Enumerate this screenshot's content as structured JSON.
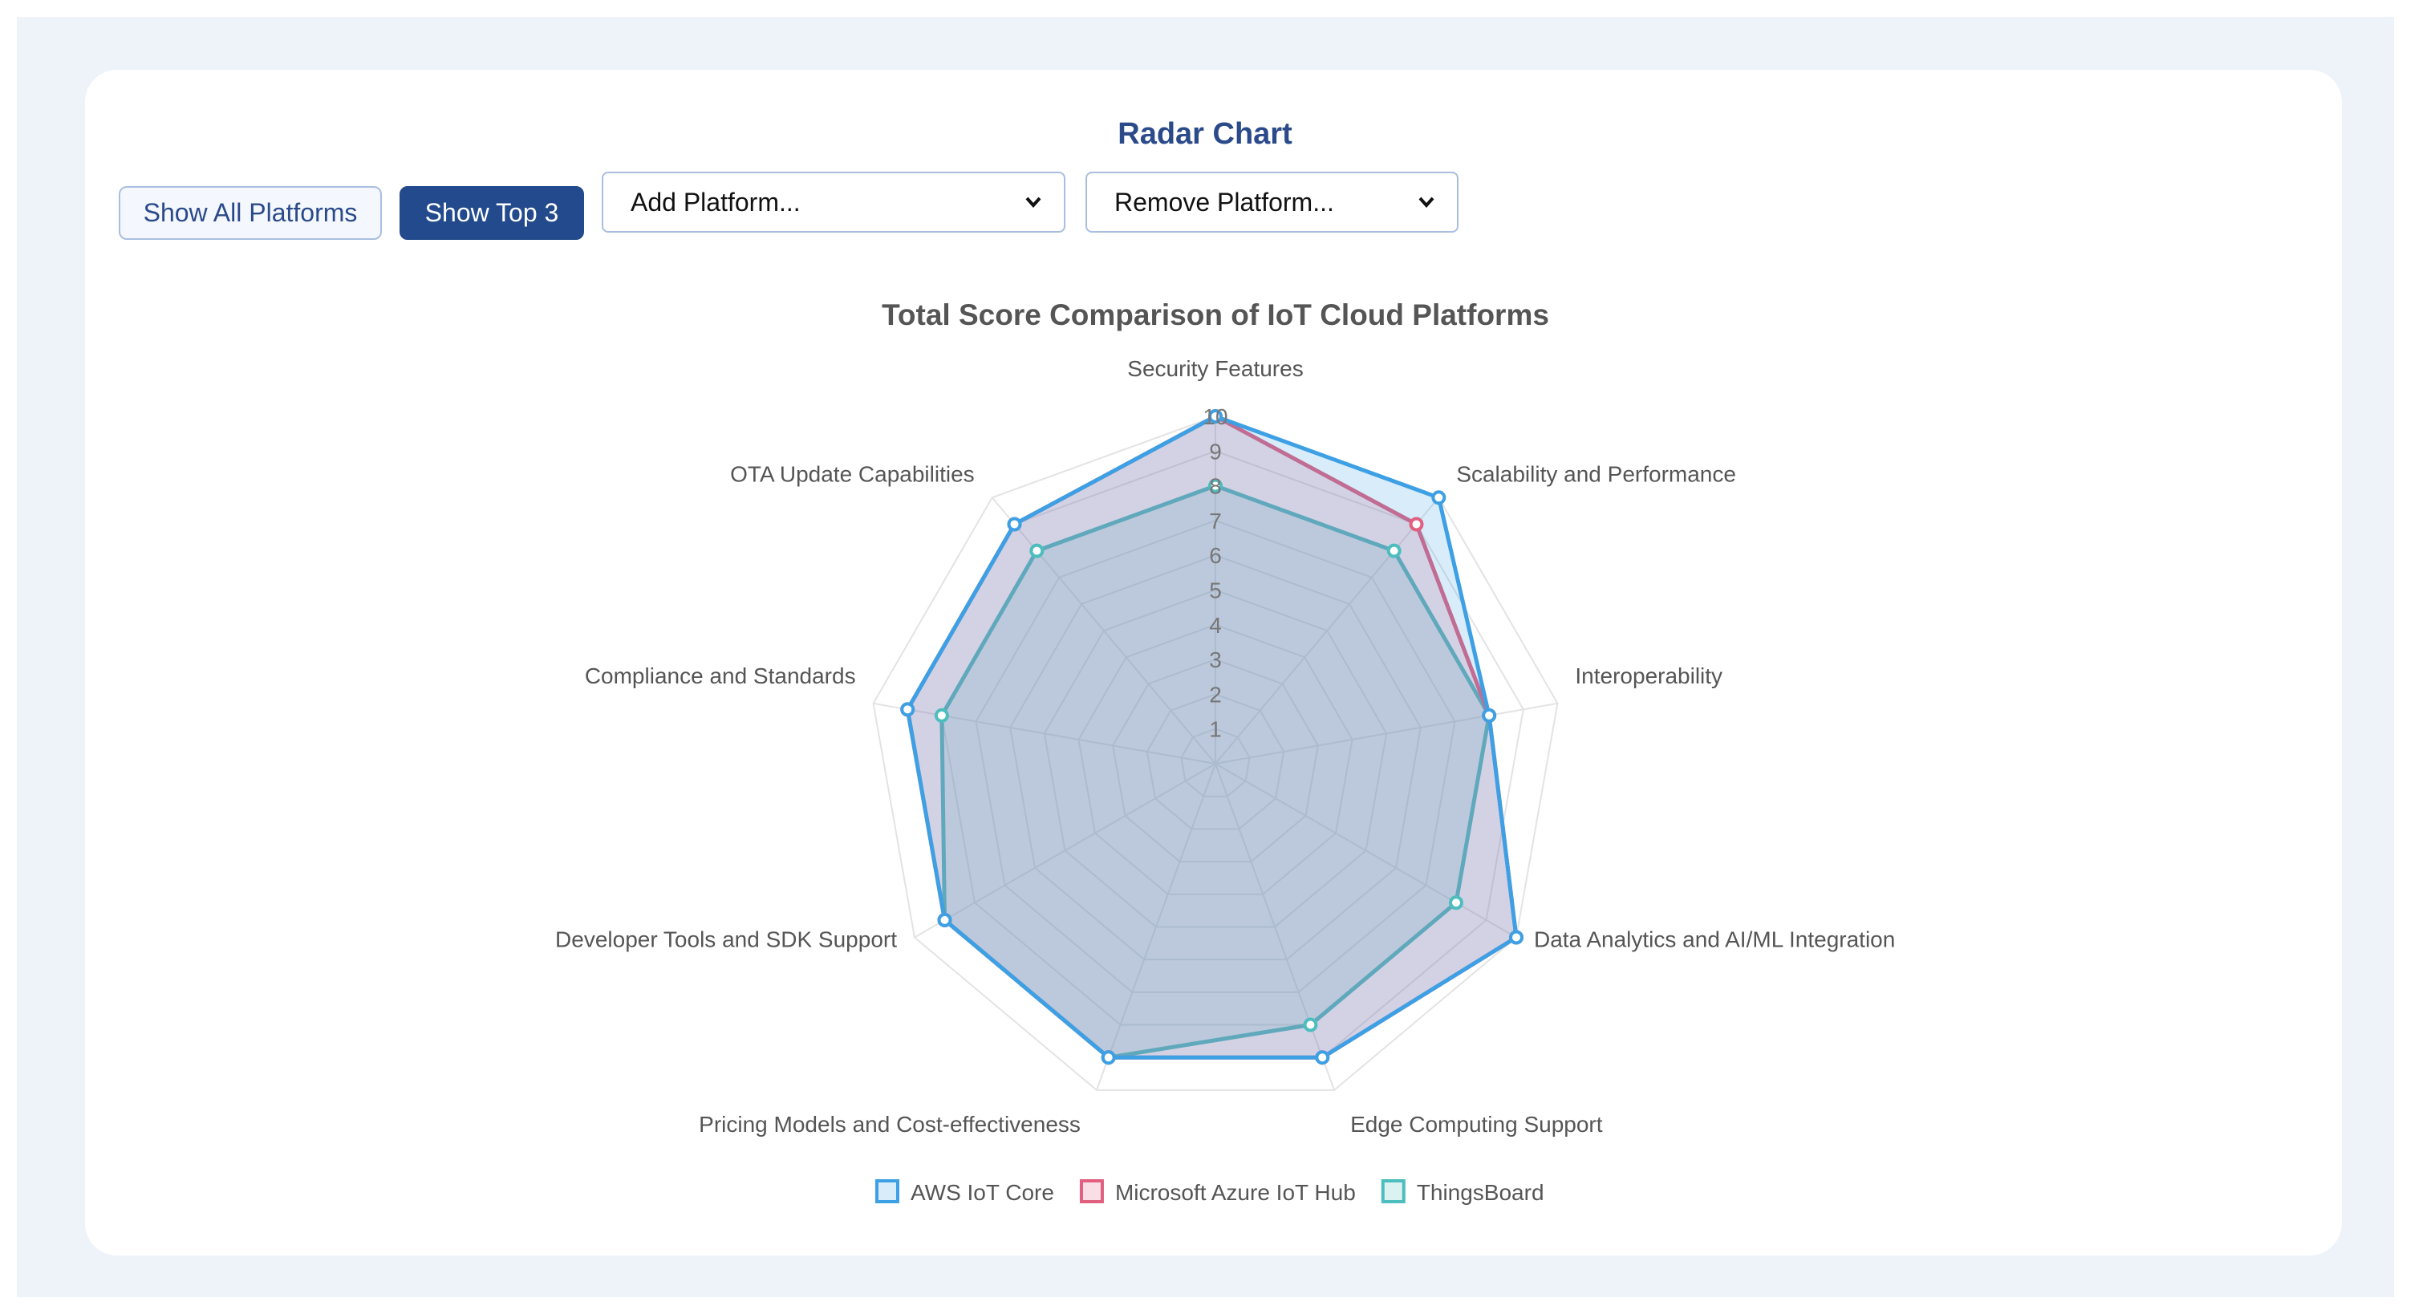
{
  "header": {
    "title": "Radar Chart"
  },
  "controls": {
    "show_all_label": "Show All Platforms",
    "show_top_label": "Show Top 3",
    "add_placeholder": "Add Platform...",
    "remove_placeholder": "Remove Platform..."
  },
  "colors": {
    "accent": "#224a8c",
    "title": "#2b4a8a",
    "aws": "#3ea0e4",
    "azure": "#e1607f",
    "thingsboard": "#4dbdbe"
  },
  "chart_data": {
    "type": "radar",
    "title": "Total Score Comparison of IoT Cloud Platforms",
    "axes": [
      "Security Features",
      "Scalability and Performance",
      "Interoperability",
      "Data Analytics and AI/ML Integration",
      "Edge Computing Support",
      "Pricing Models and Cost-effectiveness",
      "Developer Tools and SDK Support",
      "Compliance and Standards",
      "OTA Update Capabilities"
    ],
    "r_range": [
      0,
      10
    ],
    "r_ticks": [
      "1",
      "2",
      "3",
      "4",
      "5",
      "6",
      "7",
      "8",
      "9",
      "10"
    ],
    "grid": true,
    "legend_position": "bottom",
    "series": [
      {
        "name": "AWS IoT Core",
        "values": [
          10,
          10,
          8,
          10,
          9,
          9,
          9,
          9,
          9
        ]
      },
      {
        "name": "Microsoft Azure IoT Hub",
        "values": [
          10,
          9,
          8,
          10,
          9,
          9,
          9,
          9,
          9
        ]
      },
      {
        "name": "ThingsBoard",
        "values": [
          8,
          8,
          8,
          8,
          8,
          9,
          9,
          8,
          8
        ]
      }
    ]
  }
}
